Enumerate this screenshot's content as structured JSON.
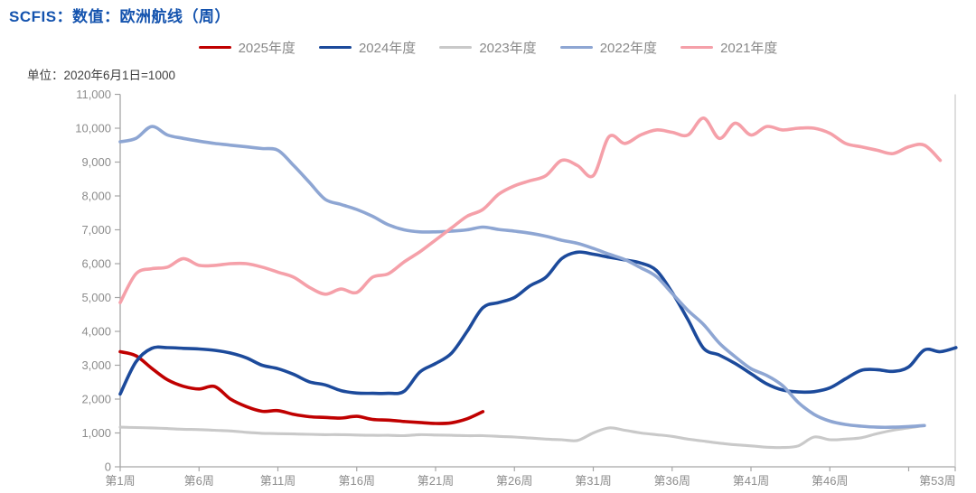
{
  "title": "SCFIS：数值：欧洲航线（周）",
  "unit_label": "单位：2020年6月1日=1000",
  "colors": {
    "title_text": "#1453ae",
    "legend_text": "#898989",
    "axis_text": "#8c8c8c",
    "axis_line": "#a6a6a6",
    "plot_right_border": "#c9c9c9"
  },
  "chart_data": {
    "type": "line",
    "title": "SCFIS：数值：欧洲航线（周）",
    "unit_note": "单位：2020年6月1日=1000",
    "grid": false,
    "legend_position": "top",
    "x_axis": {
      "unit": "week",
      "range_weeks": [
        1,
        54
      ],
      "tick_weeks": [
        1,
        6,
        11,
        16,
        21,
        26,
        31,
        36,
        41,
        46,
        51
      ],
      "tick_labels": [
        "第1周",
        "第6周",
        "第11周",
        "第16周",
        "第21周",
        "第26周",
        "第31周",
        "第36周",
        "第41周",
        "第46周"
      ],
      "end_label": "第53周",
      "end_label_week": 53
    },
    "y_axis": {
      "min": 0,
      "max": 11000,
      "step": 1000,
      "tick_labels": [
        "0",
        "1,000",
        "2,000",
        "3,000",
        "4,000",
        "5,000",
        "6,000",
        "7,000",
        "8,000",
        "9,000",
        "10,000",
        "11,000"
      ]
    },
    "series": [
      {
        "name": "2025年度",
        "color": "#c00000",
        "start_week": 1,
        "values": [
          3400,
          3280,
          2910,
          2570,
          2380,
          2300,
          2370,
          2000,
          1780,
          1640,
          1660,
          1550,
          1480,
          1460,
          1440,
          1490,
          1400,
          1380,
          1340,
          1310,
          1280,
          1300,
          1420,
          1630
        ]
      },
      {
        "name": "2024年度",
        "color": "#1c4a9b",
        "start_week": 1,
        "values": [
          2150,
          3100,
          3500,
          3520,
          3500,
          3480,
          3440,
          3360,
          3220,
          3000,
          2900,
          2730,
          2510,
          2420,
          2250,
          2180,
          2170,
          2170,
          2230,
          2800,
          3050,
          3350,
          4000,
          4700,
          4850,
          5000,
          5350,
          5600,
          6150,
          6340,
          6280,
          6190,
          6110,
          6020,
          5800,
          5150,
          4350,
          3500,
          3300,
          3050,
          2750,
          2450,
          2270,
          2210,
          2220,
          2330,
          2600,
          2850,
          2870,
          2820,
          2950,
          3450,
          3400,
          3520
        ]
      },
      {
        "name": "2023年度",
        "color": "#c9c9c9",
        "start_week": 1,
        "values": [
          1170,
          1160,
          1150,
          1130,
          1110,
          1100,
          1080,
          1060,
          1020,
          990,
          980,
          970,
          960,
          950,
          950,
          940,
          930,
          930,
          920,
          950,
          940,
          930,
          920,
          920,
          900,
          880,
          850,
          820,
          800,
          780,
          1000,
          1150,
          1080,
          1000,
          950,
          900,
          820,
          760,
          700,
          650,
          620,
          580,
          570,
          620,
          880,
          800,
          820,
          860,
          980,
          1080,
          1150,
          1220
        ]
      },
      {
        "name": "2022年度",
        "color": "#8ea6d3",
        "start_week": 1,
        "values": [
          9600,
          9700,
          10050,
          9800,
          9700,
          9620,
          9550,
          9500,
          9450,
          9400,
          9350,
          8900,
          8400,
          7900,
          7750,
          7600,
          7400,
          7150,
          7000,
          6940,
          6940,
          6960,
          7000,
          7080,
          7010,
          6960,
          6900,
          6810,
          6690,
          6600,
          6450,
          6280,
          6120,
          5880,
          5620,
          5120,
          4620,
          4200,
          3650,
          3250,
          2900,
          2700,
          2400,
          1900,
          1550,
          1350,
          1250,
          1200,
          1170,
          1170,
          1190,
          1220
        ]
      },
      {
        "name": "2021年度",
        "color": "#f5a0a9",
        "start_week": 1,
        "values": [
          4850,
          5700,
          5850,
          5900,
          6150,
          5950,
          5950,
          6000,
          6000,
          5900,
          5750,
          5600,
          5300,
          5100,
          5250,
          5150,
          5600,
          5700,
          6050,
          6350,
          6700,
          7050,
          7400,
          7600,
          8050,
          8300,
          8450,
          8600,
          9050,
          8900,
          8600,
          9750,
          9550,
          9800,
          9950,
          9880,
          9800,
          10300,
          9700,
          10150,
          9800,
          10050,
          9950,
          10000,
          10000,
          9850,
          9550,
          9450,
          9350,
          9250,
          9450,
          9500,
          9050
        ]
      }
    ]
  }
}
